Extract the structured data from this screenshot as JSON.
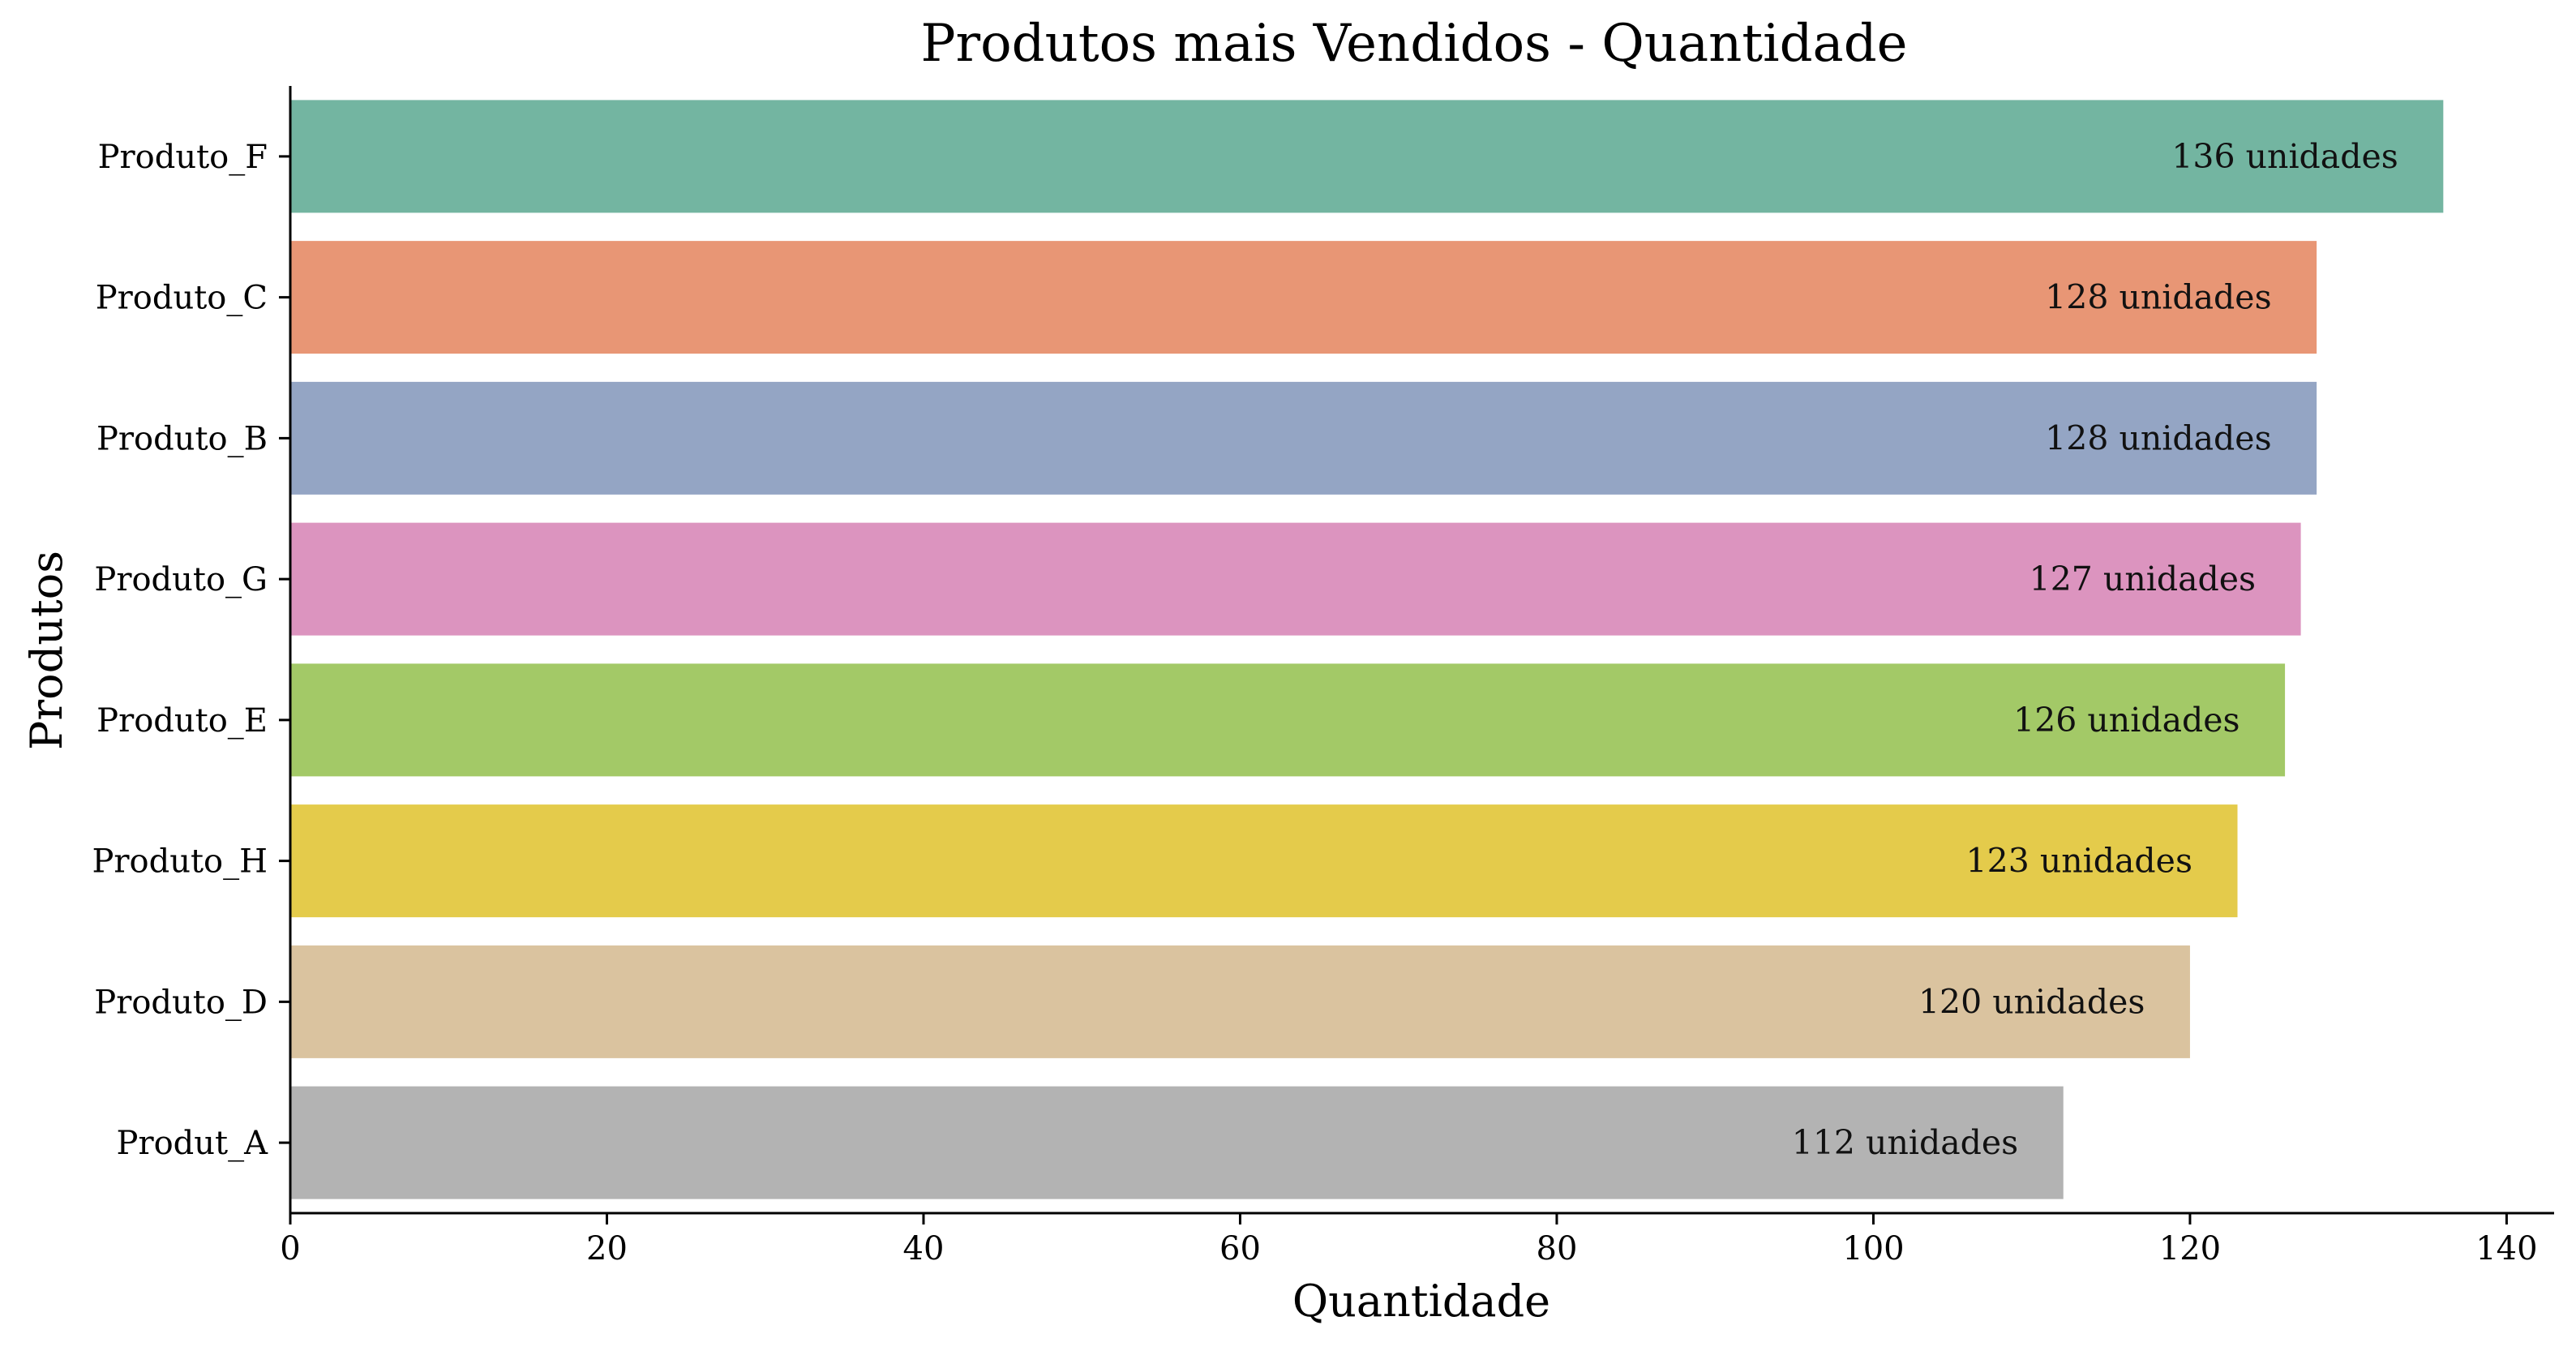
{
  "chart_data": {
    "type": "bar",
    "orientation": "horizontal",
    "title": "Produtos mais Vendidos - Quantidade",
    "xlabel": "Quantidade",
    "ylabel": "Produtos",
    "xlim": [
      0,
      143
    ],
    "xticks": [
      0,
      20,
      40,
      60,
      80,
      100,
      120,
      140
    ],
    "grid": false,
    "categories": [
      "Produto_F",
      "Produto_C",
      "Produto_B",
      "Produto_G",
      "Produto_E",
      "Produto_H",
      "Produto_D",
      "Produt_A"
    ],
    "values": [
      136,
      128,
      128,
      127,
      126,
      123,
      120,
      112
    ],
    "data_labels": [
      "136 unidades",
      "128 unidades",
      "128 unidades",
      "127 unidades",
      "126 unidades",
      "123 unidades",
      "120 unidades",
      "112 unidades"
    ],
    "colors": [
      "#73b5a1",
      "#e89675",
      "#94a5c4",
      "#dc94bf",
      "#a3c967",
      "#e4cb4b",
      "#dac39f",
      "#b3b3b3"
    ]
  }
}
